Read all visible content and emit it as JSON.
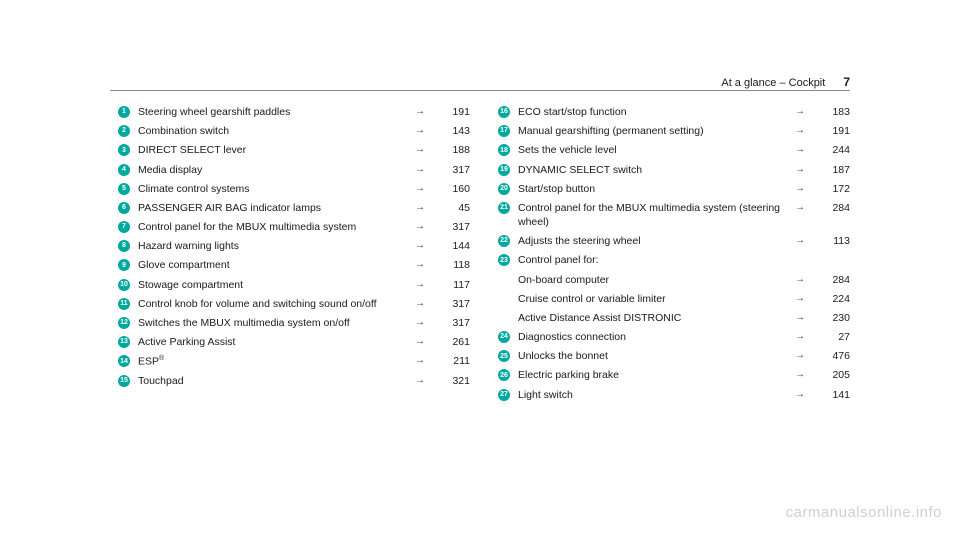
{
  "header": {
    "title": "At a glance – Cockpit",
    "page": "7"
  },
  "left_column": [
    {
      "num": "1",
      "label": "Steering wheel gearshift paddles",
      "page": "191"
    },
    {
      "num": "2",
      "label": "Combination switch",
      "page": "143"
    },
    {
      "num": "3",
      "label": "DIRECT SELECT lever",
      "page": "188"
    },
    {
      "num": "4",
      "label": "Media display",
      "page": "317"
    },
    {
      "num": "5",
      "label": "Climate control systems",
      "page": "160"
    },
    {
      "num": "6",
      "label": "PASSENGER AIR BAG indicator lamps",
      "page": "45"
    },
    {
      "num": "7",
      "label": "Control panel for the MBUX multimedia system",
      "page": "317"
    },
    {
      "num": "8",
      "label": "Hazard warning lights",
      "page": "144"
    },
    {
      "num": "9",
      "label": "Glove compartment",
      "page": "118"
    },
    {
      "num": "10",
      "label": "Stowage compartment",
      "page": "117"
    },
    {
      "num": "11",
      "label": "Control knob for volume and switching sound on/off",
      "page": "317"
    },
    {
      "num": "12",
      "label": "Switches the MBUX multimedia system on/off",
      "page": "317"
    },
    {
      "num": "13",
      "label": "Active Parking Assist",
      "page": "261"
    },
    {
      "num": "14",
      "label": "ESP",
      "sup": "®",
      "page": "211"
    },
    {
      "num": "15",
      "label": "Touchpad",
      "page": "321"
    }
  ],
  "right_column": [
    {
      "num": "16",
      "label": "ECO start/stop function",
      "page": "183"
    },
    {
      "num": "17",
      "label": "Manual gearshifting (permanent setting)",
      "page": "191"
    },
    {
      "num": "18",
      "label": "Sets the vehicle level",
      "page": "244"
    },
    {
      "num": "19",
      "label": "DYNAMIC SELECT switch",
      "page": "187"
    },
    {
      "num": "20",
      "label": "Start/stop button",
      "page": "172"
    },
    {
      "num": "21",
      "label": "Control panel for the MBUX multimedia system (steering wheel)",
      "page": "284"
    },
    {
      "num": "22",
      "label": "Adjusts the steering wheel",
      "page": "113"
    },
    {
      "num": "23",
      "label": "Control panel for:",
      "page": "",
      "no_arrow": true
    },
    {
      "num": "",
      "label": "On-board computer",
      "page": "284"
    },
    {
      "num": "",
      "label": "Cruise control or variable limiter",
      "page": "224"
    },
    {
      "num": "",
      "label": "Active Distance Assist DISTRONIC",
      "page": "230"
    },
    {
      "num": "24",
      "label": "Diagnostics connection",
      "page": "27"
    },
    {
      "num": "25",
      "label": "Unlocks the bonnet",
      "page": "476"
    },
    {
      "num": "26",
      "label": "Electric parking brake",
      "page": "205"
    },
    {
      "num": "27",
      "label": "Light switch",
      "page": "141"
    }
  ],
  "watermark": "carmanualsonline.info",
  "arrow_glyph": "→"
}
